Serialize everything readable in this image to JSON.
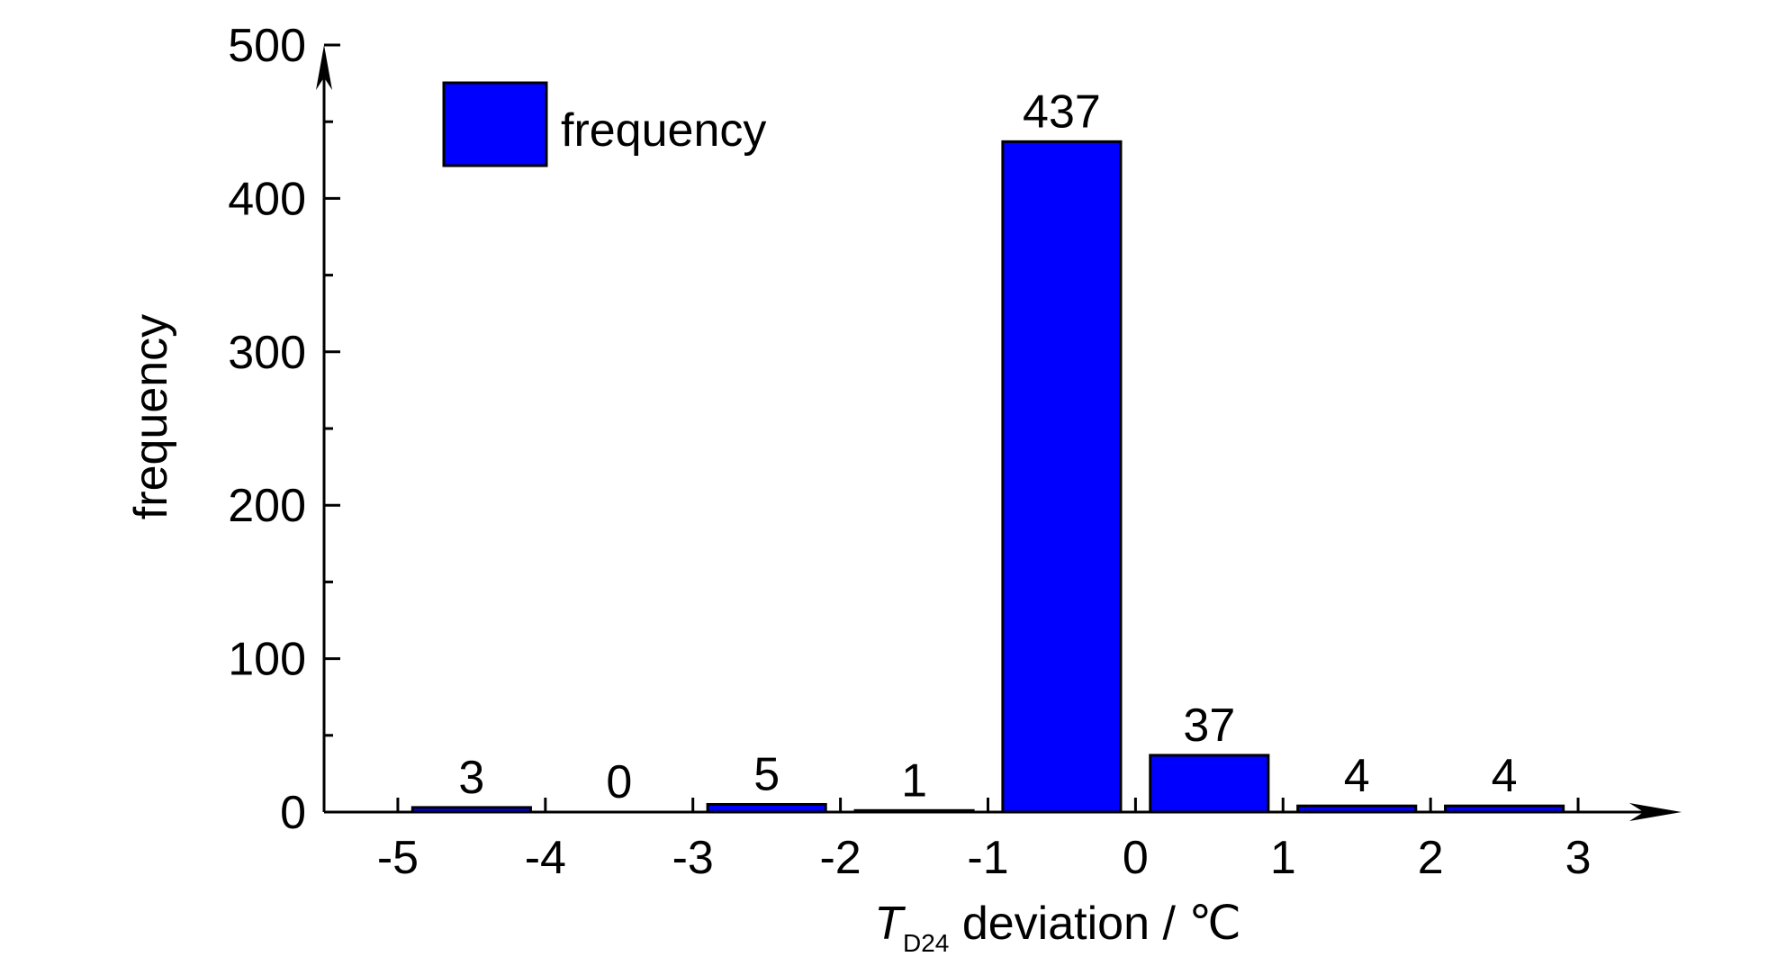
{
  "chart_data": {
    "type": "bar",
    "title": "",
    "categories": [
      "-5 to -4",
      "-4 to -3",
      "-3 to -2",
      "-2 to -1",
      "-1 to 0",
      "0 to 1",
      "1 to 2",
      "2 to 3"
    ],
    "x_bins": [
      [
        -5,
        -4
      ],
      [
        -4,
        -3
      ],
      [
        -3,
        -2
      ],
      [
        -2,
        -1
      ],
      [
        -1,
        0
      ],
      [
        0,
        1
      ],
      [
        1,
        2
      ],
      [
        2,
        3
      ]
    ],
    "series": [
      {
        "name": "frequency",
        "values": [
          3,
          0,
          5,
          1,
          437,
          37,
          4,
          4
        ],
        "color": "#0000ff"
      }
    ],
    "data_labels": [
      "3",
      "0",
      "5",
      "1",
      "437",
      "37",
      "4",
      "4"
    ],
    "xlabel": {
      "main": "T",
      "subscript": "D24",
      "rest": " deviation / ℃"
    },
    "ylabel": "frequency",
    "xlim": [
      -5.5,
      3.5
    ],
    "ylim": [
      0,
      500
    ],
    "x_ticks": [
      -5,
      -4,
      -3,
      -2,
      -1,
      0,
      1,
      2,
      3
    ],
    "x_tick_labels": [
      "-5",
      "-4",
      "-3",
      "-2",
      "-1",
      "0",
      "1",
      "2",
      "3"
    ],
    "y_ticks": [
      0,
      100,
      200,
      300,
      400,
      500
    ],
    "y_tick_labels": [
      "0",
      "100",
      "200",
      "300",
      "400",
      "500"
    ],
    "legend": {
      "position": "top-left",
      "entries": [
        "frequency"
      ]
    },
    "grid": false
  }
}
